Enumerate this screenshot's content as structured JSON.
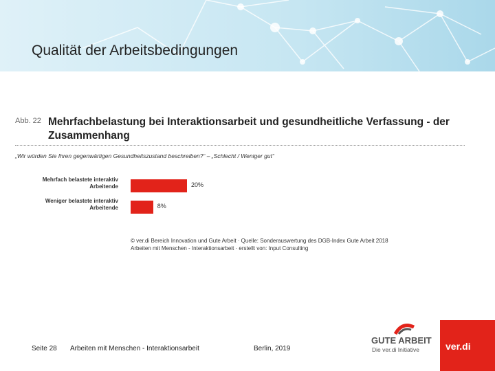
{
  "slide": {
    "title": "Qualität der Arbeitsbedingungen",
    "figure_number": "Abb. 22",
    "source_lines": [
      "© ver.di Bereich Innovation und Gute Arbeit · Quelle: Sonderauswertung des DGB-Index Gute Arbeit 2018",
      "Arbeiten mit Menschen - Interaktionsarbeit · erstellt von: Input Consulting"
    ],
    "footer": {
      "page": "Seite 28",
      "topic": "Arbeiten mit Menschen - Interaktionsarbeit",
      "place_date": "Berlin, 2019"
    },
    "logos": {
      "gute_arbeit": "GUTE ARBEIT",
      "initiative": "Die ver.di Initiative",
      "verdi": "ver.di"
    }
  },
  "chart_data": {
    "type": "bar",
    "orientation": "horizontal",
    "title": "Mehrfachbelastung bei Interaktionsarbeit und gesundheitliche Verfassung - der Zusammenhang",
    "subtitle": "„Wir würden Sie Ihren gegenwärtigen Gesundheitszustand beschreiben?“ – „Schlecht / Weniger gut“",
    "categories": [
      "Mehrfach belastete interaktiv Arbeitende",
      "Weniger belastete interaktiv Arbeitende"
    ],
    "values": [
      20,
      8
    ],
    "value_labels": [
      "20%",
      "8%"
    ],
    "color": "#e2231a"
  }
}
